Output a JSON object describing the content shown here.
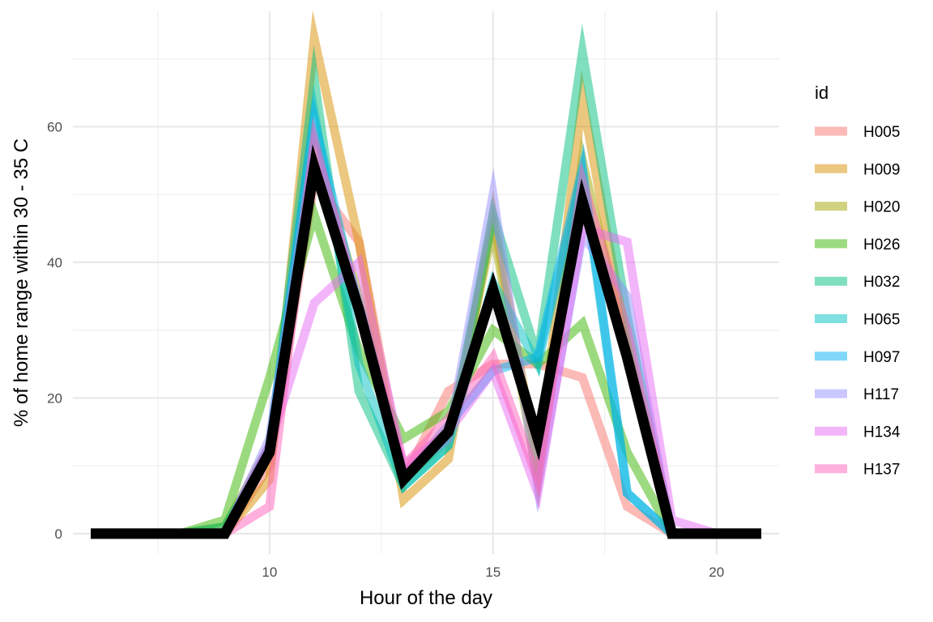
{
  "chart_data": {
    "type": "line",
    "title": "",
    "xlabel": "Hour of the day",
    "ylabel": "% of home range within 30 - 35 C",
    "xlim": [
      5.6,
      21.4
    ],
    "ylim": [
      -3,
      77
    ],
    "x_ticks": [
      10,
      15,
      20
    ],
    "y_ticks": [
      0,
      20,
      40,
      60
    ],
    "grid": true,
    "legend": {
      "title": "id",
      "position": "right"
    },
    "x": [
      6,
      7,
      8,
      9,
      10,
      11,
      12,
      13,
      14,
      15,
      16,
      17,
      18,
      19,
      20,
      21
    ],
    "series": [
      {
        "name": "H005",
        "color": "#F8766D",
        "values": [
          0,
          0,
          0,
          0,
          10,
          52,
          43,
          8,
          21,
          25,
          25,
          23,
          4,
          0,
          0,
          0
        ]
      },
      {
        "name": "H009",
        "color": "#D89000",
        "values": [
          0,
          0,
          0,
          0,
          8,
          73,
          43,
          5,
          11,
          47,
          10,
          64,
          28,
          0,
          0,
          0
        ]
      },
      {
        "name": "H020",
        "color": "#A3A500",
        "values": [
          0,
          0,
          0,
          1,
          13,
          57,
          35,
          8,
          14,
          45,
          8,
          55,
          27,
          0,
          0,
          0
        ]
      },
      {
        "name": "H026",
        "color": "#39B600",
        "values": [
          0,
          0,
          0,
          2,
          23,
          47,
          27,
          14,
          18,
          30,
          25,
          31,
          12,
          0,
          0,
          0
        ]
      },
      {
        "name": "H032",
        "color": "#00BF7D",
        "values": [
          0,
          0,
          0,
          1,
          12,
          67,
          21,
          7,
          13,
          47,
          26,
          71,
          32,
          0,
          0,
          0
        ]
      },
      {
        "name": "H065",
        "color": "#00BFC4",
        "values": [
          0,
          0,
          0,
          0,
          12,
          62,
          25,
          7,
          13,
          37,
          25,
          53,
          6,
          0,
          0,
          0
        ]
      },
      {
        "name": "H097",
        "color": "#00B0F6",
        "values": [
          0,
          0,
          0,
          0,
          13,
          61,
          33,
          8,
          16,
          24,
          26,
          54,
          6,
          0,
          0,
          0
        ]
      },
      {
        "name": "H117",
        "color": "#9590FF",
        "values": [
          0,
          0,
          0,
          0,
          14,
          57,
          34,
          9,
          14,
          50,
          7,
          44,
          35,
          0,
          0,
          0
        ]
      },
      {
        "name": "H134",
        "color": "#E76BF3",
        "values": [
          0,
          0,
          0,
          0,
          13,
          34,
          40,
          10,
          15,
          24,
          6,
          45,
          43,
          2,
          0,
          0
        ]
      },
      {
        "name": "H137",
        "color": "#FF62BC",
        "values": [
          0,
          0,
          0,
          0,
          4,
          58,
          33,
          10,
          17,
          26,
          8,
          52,
          30,
          0,
          0,
          0
        ]
      }
    ],
    "summary_series": {
      "color": "#000000",
      "values": [
        0,
        0,
        0,
        0,
        12,
        54,
        33,
        8,
        15,
        36,
        14,
        49,
        26,
        0,
        0,
        0
      ]
    }
  }
}
